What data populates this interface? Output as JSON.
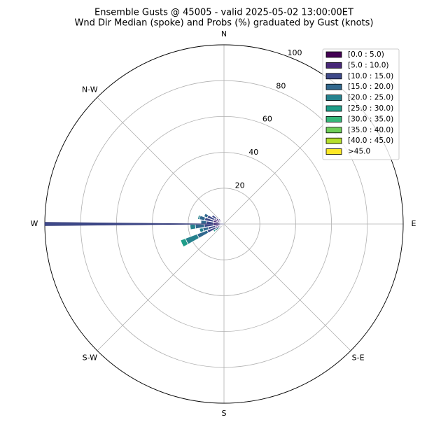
{
  "chart_data": {
    "type": "windrose",
    "title": "Ensemble Gusts @ 45005 - valid 2025-05-02 13:00:00ET",
    "subtitle": "Wnd Dir Median (spoke) and Probs (%) graduated by Gust (knots)",
    "directions": [
      235,
      245,
      255,
      265,
      275,
      285,
      295,
      305,
      315
    ],
    "series": [
      {
        "name": "[0.0 : 5.0)",
        "color": "#440154",
        "values": [
          0,
          2,
          2,
          2,
          2,
          2,
          2,
          2,
          1
        ]
      },
      {
        "name": "[5.0 : 10.0)",
        "color": "#482878",
        "values": [
          0,
          3,
          3,
          4,
          4,
          4,
          4,
          3,
          2
        ]
      },
      {
        "name": "[10.0 : 15.0)",
        "color": "#3e4989",
        "values": [
          1,
          5,
          4,
          5,
          4,
          5,
          4,
          3,
          1
        ]
      },
      {
        "name": "[15.0 : 20.0)",
        "color": "#31688e",
        "values": [
          2,
          6,
          3,
          5,
          3,
          3,
          2,
          0,
          0
        ]
      },
      {
        "name": "[20.0 : 25.0)",
        "color": "#26828e",
        "values": [
          3,
          7,
          2,
          3,
          0,
          1,
          0,
          0,
          0
        ]
      },
      {
        "name": "[25.0 : 30.0)",
        "color": "#1f9e89",
        "values": [
          1,
          3,
          0,
          0,
          0,
          0,
          0,
          0,
          0
        ]
      },
      {
        "name": "[30.0 : 35.0)",
        "color": "#35b779",
        "values": [
          0,
          0,
          0,
          0,
          0,
          0,
          0,
          0,
          0
        ]
      },
      {
        "name": "[35.0 : 40.0)",
        "color": "#6ece58",
        "values": [
          0,
          0,
          0,
          0,
          0,
          0,
          0,
          0,
          0
        ]
      },
      {
        "name": "[40.0 : 45.0)",
        "color": "#b5de2b",
        "values": [
          0,
          0,
          0,
          0,
          0,
          0,
          0,
          0,
          0
        ]
      },
      {
        "name": ">45.0",
        "color": "#fde725",
        "values": [
          0,
          0,
          0,
          0,
          0,
          0,
          0,
          0,
          0
        ]
      }
    ],
    "spoke": {
      "direction": 270,
      "value": 100,
      "color": "#3e4989"
    },
    "rlim": [
      0,
      100
    ],
    "rticks": [
      20,
      40,
      60,
      80,
      100
    ],
    "thetaticks": [
      0,
      45,
      90,
      135,
      180,
      225,
      270,
      315
    ],
    "theta_labels": [
      {
        "value": 0,
        "label": "N"
      },
      {
        "value": 90,
        "label": "E"
      },
      {
        "value": 135,
        "label": "S-E"
      },
      {
        "value": 180,
        "label": "S"
      },
      {
        "value": 225,
        "label": "S-W"
      },
      {
        "value": 270,
        "label": "W"
      },
      {
        "value": 315,
        "label": "N-W"
      }
    ],
    "grid": true,
    "legend": "upper-right"
  }
}
